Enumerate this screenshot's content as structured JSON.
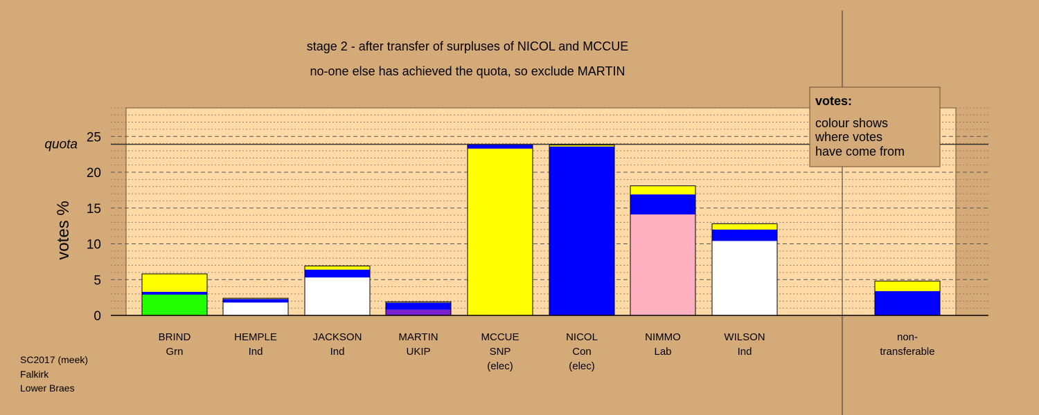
{
  "chart_data": {
    "type": "bar",
    "stacked": true,
    "title": "stage 2 - after transfer of surpluses of NICOL and MCCUE",
    "subtitle": "no-one else has achieved the quota, so exclude MARTIN",
    "ylabel": "votes %",
    "ylim": [
      0,
      29
    ],
    "yticks": [
      0,
      5,
      10,
      15,
      20,
      25
    ],
    "quota": {
      "label": "quota",
      "value": 23.9
    },
    "legend": {
      "title": "votes:",
      "lines": [
        "colour shows",
        "where votes",
        "have come from"
      ],
      "position": "top-right"
    },
    "footer": [
      "SC2017 (meek)",
      "Falkirk",
      "Lower Braes"
    ],
    "colors": {
      "yellow": "#ffff00",
      "blue": "#0000ff",
      "green": "#22ff00",
      "white": "#ffffff",
      "purple": "#7b22d0",
      "pink": "#ffb0c0",
      "background": "#d4aa78",
      "plot": "#ffd9a6"
    },
    "bars": [
      {
        "name": "BRIND",
        "party": "Grn",
        "note": "",
        "segments": [
          {
            "color": "#22ff00",
            "value": 2.9
          },
          {
            "color": "#0000ff",
            "value": 0.4
          },
          {
            "color": "#ffff00",
            "value": 2.5
          }
        ]
      },
      {
        "name": "HEMPLE",
        "party": "Ind",
        "note": "",
        "segments": [
          {
            "color": "#ffffff",
            "value": 1.8
          },
          {
            "color": "#0000ff",
            "value": 0.5
          },
          {
            "color": "#ffff00",
            "value": 0.1
          }
        ]
      },
      {
        "name": "JACKSON",
        "party": "Ind",
        "note": "",
        "segments": [
          {
            "color": "#ffffff",
            "value": 5.3
          },
          {
            "color": "#0000ff",
            "value": 1.1
          },
          {
            "color": "#ffff00",
            "value": 0.5
          }
        ]
      },
      {
        "name": "MARTIN",
        "party": "UKIP",
        "note": "",
        "segments": [
          {
            "color": "#7b22d0",
            "value": 0.8
          },
          {
            "color": "#0000ff",
            "value": 1.0
          },
          {
            "color": "#ffff00",
            "value": 0.1
          }
        ]
      },
      {
        "name": "MCCUE",
        "party": "SNP",
        "note": "(elec)",
        "segments": [
          {
            "color": "#ffff00",
            "value": 23.3
          },
          {
            "color": "#0000ff",
            "value": 0.6
          }
        ]
      },
      {
        "name": "NICOL",
        "party": "Con",
        "note": "(elec)",
        "segments": [
          {
            "color": "#0000ff",
            "value": 23.6
          },
          {
            "color": "#ffff00",
            "value": 0.2
          }
        ]
      },
      {
        "name": "NIMMO",
        "party": "Lab",
        "note": "",
        "segments": [
          {
            "color": "#ffb0c0",
            "value": 14.1
          },
          {
            "color": "#0000ff",
            "value": 2.8
          },
          {
            "color": "#ffff00",
            "value": 1.2
          }
        ]
      },
      {
        "name": "WILSON",
        "party": "Ind",
        "note": "",
        "segments": [
          {
            "color": "#ffffff",
            "value": 10.4
          },
          {
            "color": "#0000ff",
            "value": 1.6
          },
          {
            "color": "#ffff00",
            "value": 0.8
          }
        ]
      },
      {
        "name": "non-",
        "party": "transferable",
        "note": "",
        "segments": [
          {
            "color": "#0000ff",
            "value": 3.4
          },
          {
            "color": "#ffff00",
            "value": 1.4
          }
        ]
      }
    ]
  }
}
